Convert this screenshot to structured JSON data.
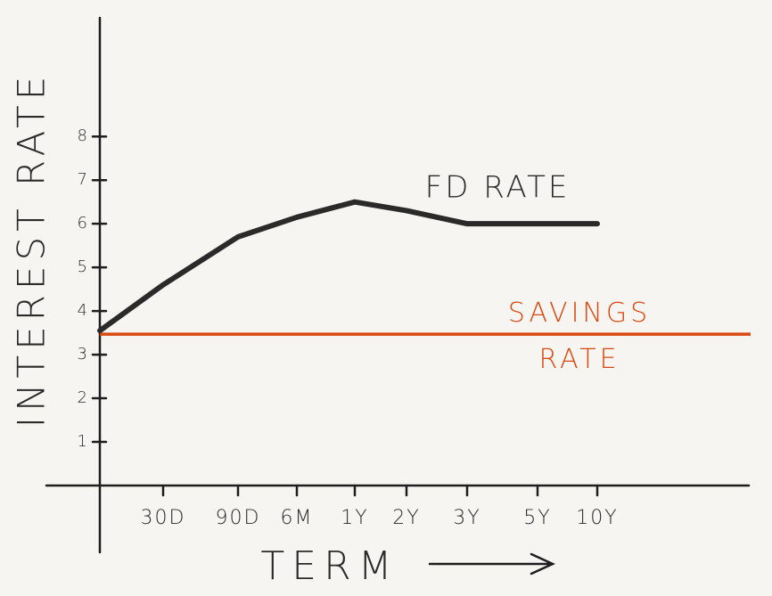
{
  "chart_data": {
    "type": "line",
    "x_label": "TERM",
    "y_label": "INTEREST RATE",
    "categories": [
      null,
      "30D",
      "90D",
      "6M",
      "1Y",
      "2Y",
      "3Y",
      "5Y",
      "10Y"
    ],
    "series": [
      {
        "name": "FD RATE",
        "color": "#2a2a2a",
        "values": [
          3.55,
          4.6,
          5.7,
          6.15,
          6.5,
          6.3,
          6.0,
          6.0,
          6.0
        ]
      }
    ],
    "reference_lines": [
      {
        "name": "SAVINGS RATE",
        "color": "#d9480f",
        "value": 3.47
      }
    ],
    "ylim": [
      0,
      10.7
    ],
    "yticks": [
      1,
      2,
      3,
      4,
      5,
      6,
      7,
      8
    ]
  }
}
